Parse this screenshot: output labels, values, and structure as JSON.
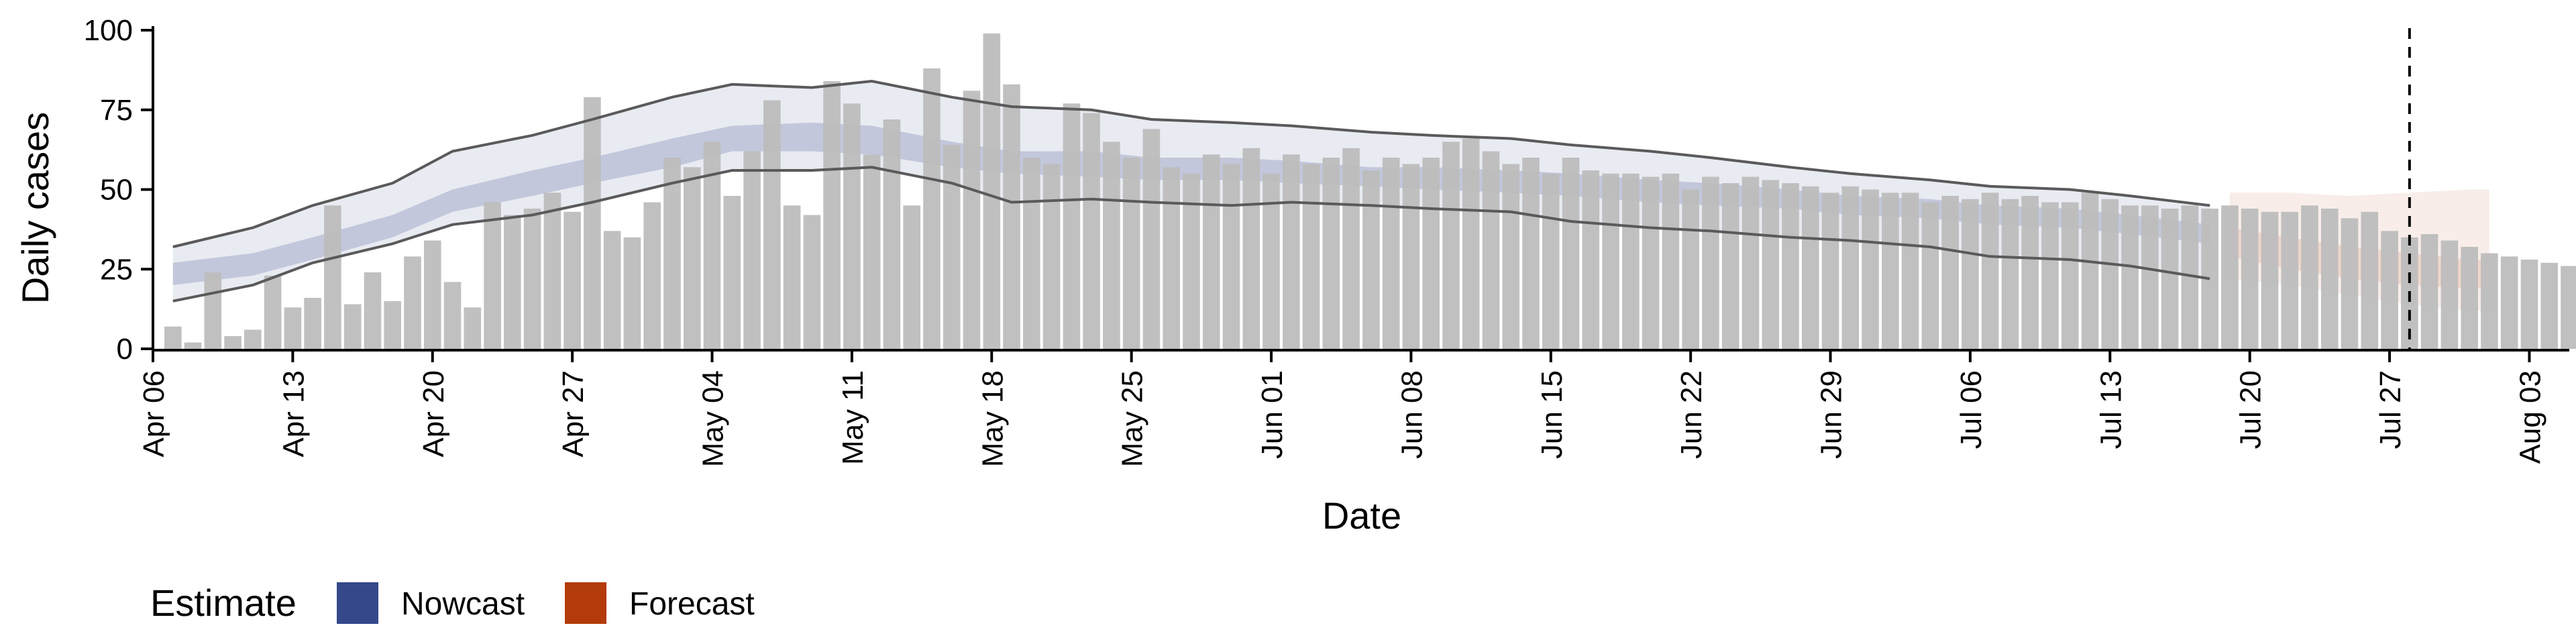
{
  "chart_data": {
    "type": "bar",
    "xlabel": "Date",
    "ylabel": "Daily cases",
    "ylim": [
      0,
      100
    ],
    "y_ticks": [
      0,
      25,
      50,
      75,
      100
    ],
    "x_range": [
      "2020-04-06",
      "2020-08-05"
    ],
    "x_ticks": [
      {
        "date": "2020-04-06",
        "label": "Apr 06"
      },
      {
        "date": "2020-04-13",
        "label": "Apr 13"
      },
      {
        "date": "2020-04-20",
        "label": "Apr 20"
      },
      {
        "date": "2020-04-27",
        "label": "Apr 27"
      },
      {
        "date": "2020-05-04",
        "label": "May 04"
      },
      {
        "date": "2020-05-11",
        "label": "May 11"
      },
      {
        "date": "2020-05-18",
        "label": "May 18"
      },
      {
        "date": "2020-05-25",
        "label": "May 25"
      },
      {
        "date": "2020-06-01",
        "label": "Jun 01"
      },
      {
        "date": "2020-06-08",
        "label": "Jun 08"
      },
      {
        "date": "2020-06-15",
        "label": "Jun 15"
      },
      {
        "date": "2020-06-22",
        "label": "Jun 22"
      },
      {
        "date": "2020-06-29",
        "label": "Jun 29"
      },
      {
        "date": "2020-07-06",
        "label": "Jul 06"
      },
      {
        "date": "2020-07-13",
        "label": "Jul 13"
      },
      {
        "date": "2020-07-20",
        "label": "Jul 20"
      },
      {
        "date": "2020-07-27",
        "label": "Jul 27"
      },
      {
        "date": "2020-08-03",
        "label": "Aug 03"
      }
    ],
    "grid": false,
    "legend_position": "bottom-left",
    "legend_title": "Estimate",
    "legend": [
      {
        "label": "Nowcast",
        "color": "#35488a"
      },
      {
        "label": "Forecast",
        "color": "#b33a0a"
      }
    ],
    "vline_date": "2020-07-28",
    "bars": {
      "start_date": "2020-04-07",
      "color": "#bdbdbd",
      "values": [
        7,
        2,
        24,
        4,
        6,
        23,
        13,
        16,
        45,
        14,
        24,
        15,
        29,
        34,
        21,
        13,
        46,
        42,
        44,
        49,
        43,
        79,
        37,
        35,
        46,
        60,
        57,
        65,
        48,
        62,
        78,
        45,
        42,
        84,
        77,
        61,
        72,
        45,
        88,
        64,
        81,
        99,
        83,
        60,
        58,
        77,
        74,
        65,
        60,
        69,
        57,
        55,
        61,
        58,
        63,
        55,
        61,
        58,
        60,
        63,
        56,
        60,
        58,
        60,
        65,
        66,
        62,
        58,
        60,
        55,
        60,
        56,
        55,
        55,
        54,
        55,
        50,
        54,
        52,
        54,
        53,
        52,
        51,
        49,
        51,
        50,
        49,
        49,
        46,
        48,
        47,
        49,
        47,
        48,
        46,
        46,
        49,
        47,
        45,
        45,
        44,
        45,
        44,
        45,
        44,
        43,
        43,
        45,
        44,
        41,
        43,
        37,
        35,
        36,
        34,
        32,
        30,
        29,
        28,
        27,
        26
      ]
    },
    "nowcast": {
      "name": "Nowcast",
      "color": "#35488a",
      "x": [
        "2020-04-07",
        "2020-04-11",
        "2020-04-14",
        "2020-04-18",
        "2020-04-21",
        "2020-04-25",
        "2020-04-28",
        "2020-05-02",
        "2020-05-05",
        "2020-05-09",
        "2020-05-12",
        "2020-05-16",
        "2020-05-19",
        "2020-05-23",
        "2020-05-26",
        "2020-05-30",
        "2020-06-02",
        "2020-06-06",
        "2020-06-09",
        "2020-06-13",
        "2020-06-16",
        "2020-06-20",
        "2020-06-23",
        "2020-06-27",
        "2020-06-30",
        "2020-07-04",
        "2020-07-07",
        "2020-07-11",
        "2020-07-14",
        "2020-07-18"
      ],
      "outer_upper": [
        32,
        38,
        45,
        52,
        62,
        67,
        72,
        79,
        83,
        82,
        84,
        79,
        76,
        75,
        72,
        71,
        70,
        68,
        67,
        66,
        64,
        62,
        60,
        57,
        55,
        53,
        51,
        50,
        48,
        45
      ],
      "outer_lower": [
        15,
        20,
        27,
        33,
        39,
        42,
        46,
        52,
        56,
        56,
        57,
        52,
        46,
        47,
        46,
        45,
        46,
        45,
        44,
        43,
        40,
        38,
        37,
        35,
        34,
        32,
        29,
        28,
        26,
        22
      ],
      "inner_upper": [
        27,
        30,
        35,
        42,
        50,
        56,
        60,
        66,
        70,
        71,
        70,
        65,
        62,
        62,
        60,
        60,
        59,
        57,
        57,
        56,
        55,
        53,
        52,
        50,
        48,
        47,
        45,
        44,
        42,
        39
      ],
      "inner_lower": [
        20,
        23,
        28,
        35,
        43,
        48,
        52,
        57,
        62,
        62,
        61,
        57,
        55,
        54,
        53,
        53,
        52,
        51,
        50,
        49,
        48,
        46,
        45,
        44,
        42,
        41,
        39,
        38,
        36,
        33
      ],
      "median_upper": [
        32,
        38,
        45,
        52,
        62,
        67,
        72,
        79,
        83,
        82,
        84,
        79,
        76,
        75,
        72,
        71,
        70,
        68,
        67,
        66,
        64,
        62,
        60,
        57,
        55,
        53,
        51,
        50,
        48,
        45
      ],
      "median_lower": [
        15,
        20,
        27,
        33,
        39,
        42,
        46,
        52,
        56,
        56,
        57,
        52,
        46,
        47,
        46,
        45,
        46,
        45,
        44,
        43,
        40,
        38,
        37,
        35,
        34,
        32,
        29,
        28,
        26,
        22
      ]
    },
    "forecast": {
      "name": "Forecast",
      "color": "#b33a0a",
      "x": [
        "2020-07-19",
        "2020-07-22",
        "2020-07-25",
        "2020-07-28",
        "2020-07-31",
        "2020-08-01"
      ],
      "outer_upper": [
        49,
        49,
        48,
        49,
        50,
        50
      ],
      "outer_lower": [
        22,
        20,
        17,
        14,
        12,
        12
      ],
      "inner_upper": [
        38,
        35,
        32,
        30,
        28,
        28
      ],
      "inner_lower": [
        29,
        25,
        22,
        20,
        19,
        19
      ]
    }
  }
}
